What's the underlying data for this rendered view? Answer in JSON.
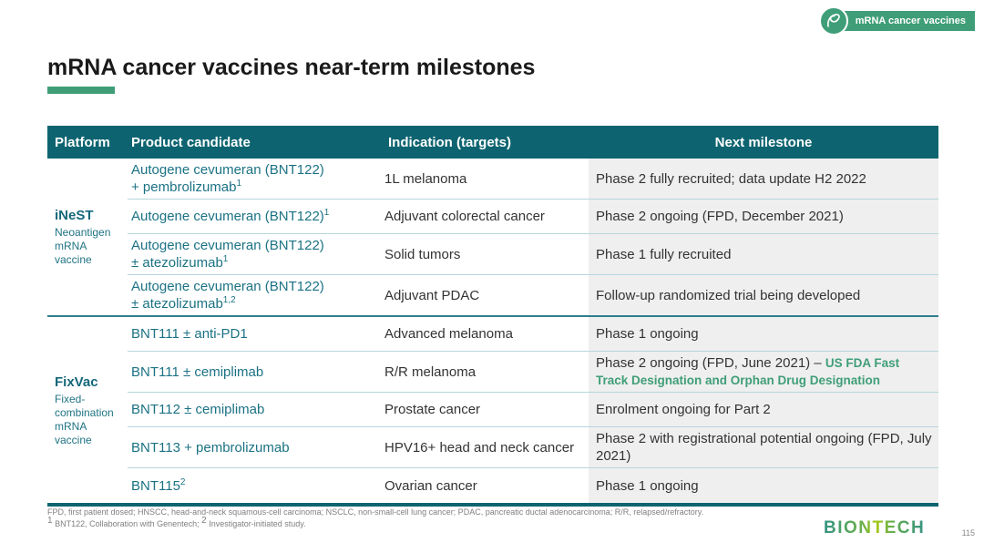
{
  "badge": {
    "label": "mRNA cancer vaccines"
  },
  "title": "mRNA cancer vaccines near-term milestones",
  "table": {
    "headers": [
      "Platform",
      "Product candidate",
      "Indication (targets)",
      "Next milestone"
    ],
    "groups": [
      {
        "platform": {
          "name": "iNeST",
          "description": "Neoantigen\nmRNA\nvaccine"
        },
        "rows": [
          {
            "product": "Autogene cevumeran (BNT122)\n+ pembrolizumab[sup]1[/sup]",
            "indication": "1L melanoma",
            "milestone": "Phase 2 fully recruited; data update H2 2022"
          },
          {
            "product": "Autogene cevumeran (BNT122)[sup]1[/sup]",
            "indication": "Adjuvant colorectal cancer",
            "milestone": "Phase 2 ongoing (FPD, December 2021)"
          },
          {
            "product": "Autogene cevumeran (BNT122)\n± atezolizumab[sup]1[/sup]",
            "indication": "Solid tumors",
            "milestone": "Phase 1 fully recruited"
          },
          {
            "product": "Autogene cevumeran (BNT122)\n± atezolizumab[sup]1,2[/sup]",
            "indication": "Adjuvant PDAC",
            "milestone": "Follow-up randomized trial being developed"
          }
        ]
      },
      {
        "platform": {
          "name": "FixVac",
          "description": "Fixed-\ncombination\nmRNA\nvaccine"
        },
        "rows": [
          {
            "product": "BNT111 ± anti-PD1",
            "indication": "Advanced melanoma",
            "milestone": "Phase 1 ongoing"
          },
          {
            "product": "BNT111 ± cemiplimab",
            "indication": "R/R melanoma",
            "milestone": "Phase 2 ongoing (FPD, June 2021) – ",
            "milestone_accent": "US FDA Fast Track Designation and Orphan Drug Designation"
          },
          {
            "product": "BNT112 ± cemiplimab",
            "indication": "Prostate cancer",
            "milestone": "Enrolment ongoing for Part 2"
          },
          {
            "product": "BNT113 + pembrolizumab",
            "indication": "HPV16+ head and neck cancer",
            "milestone": "Phase 2 with registrational potential ongoing (FPD, July 2021)"
          },
          {
            "product": "BNT115[sup]2[/sup]",
            "indication": "Ovarian cancer",
            "milestone": "Phase 1 ongoing"
          }
        ]
      }
    ]
  },
  "footer": {
    "footnote_line1": "FPD, first patient dosed; HNSCC, head-and-neck squamous-cell carcinoma; NSCLC, non-small-cell lung cancer; PDAC, pancreatic ductal adenocarcinoma; R/R, relapsed/refractory.",
    "footnote_line2": "[sup]1[/sup] BNT122, Collaboration with Genentech; [sup]2[/sup] Investigator-initiated study.",
    "logo_text": "BIONTECH",
    "page_number": "115"
  },
  "colors": {
    "header_teal": "#0d6470",
    "group_divider_teal": "#2e7e8e",
    "product_text_teal": "#1b7284",
    "accent_green": "#3f9e78",
    "milestone_column_bg": "#efefef",
    "row_divider": "#b5d6db"
  }
}
